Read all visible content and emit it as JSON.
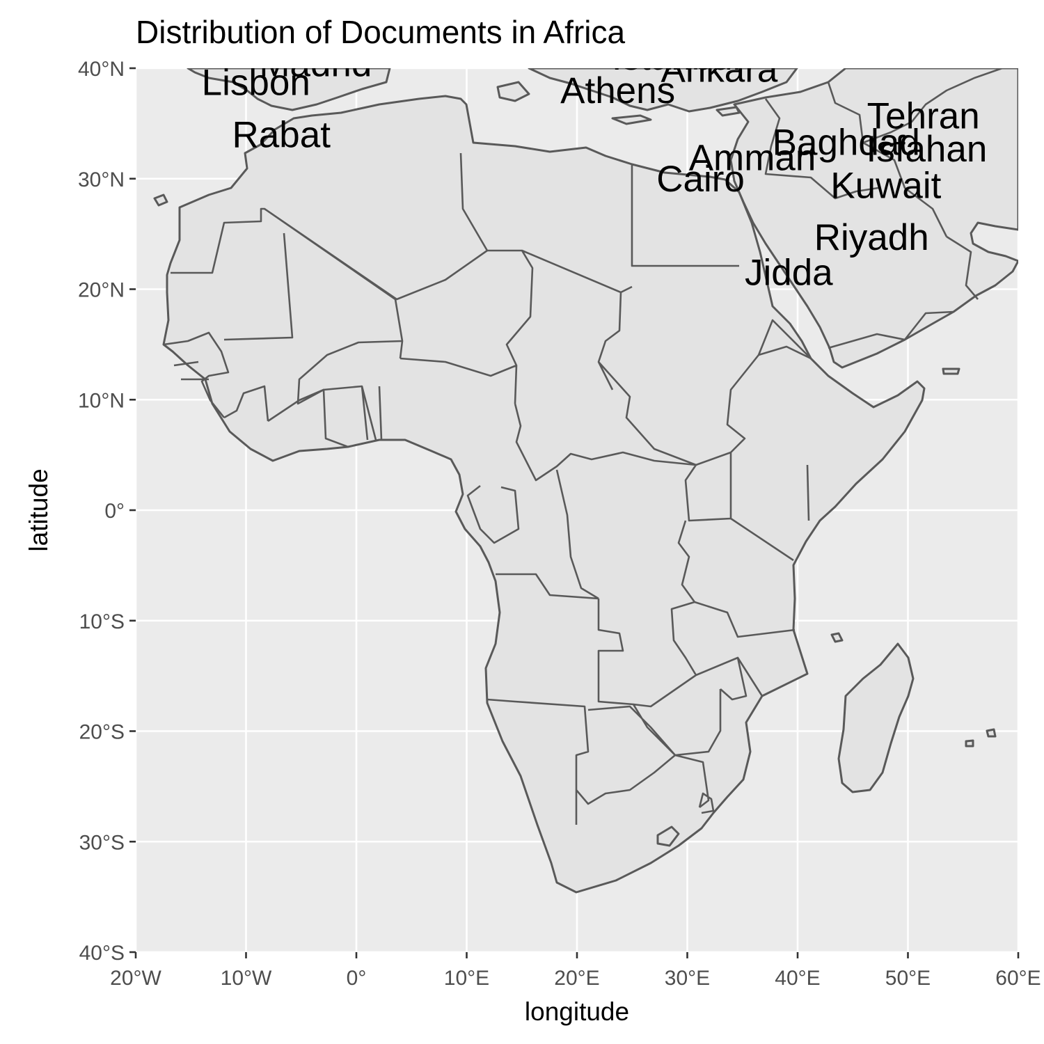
{
  "title": "Distribution of Documents in Africa",
  "x_axis": {
    "label": "longitude",
    "range": [
      -20,
      60
    ],
    "ticks": [
      {
        "value": -20,
        "label": "20°W"
      },
      {
        "value": -10,
        "label": "10°W"
      },
      {
        "value": 0,
        "label": "0°"
      },
      {
        "value": 10,
        "label": "10°E"
      },
      {
        "value": 20,
        "label": "20°E"
      },
      {
        "value": 30,
        "label": "30°E"
      },
      {
        "value": 40,
        "label": "40°E"
      },
      {
        "value": 50,
        "label": "50°E"
      },
      {
        "value": 60,
        "label": "60°E"
      }
    ]
  },
  "y_axis": {
    "label": "latitude",
    "range": [
      -40,
      40
    ],
    "ticks": [
      {
        "value": 40,
        "label": "40°N"
      },
      {
        "value": 30,
        "label": "30°N"
      },
      {
        "value": 20,
        "label": "20°N"
      },
      {
        "value": 10,
        "label": "10°N"
      },
      {
        "value": 0,
        "label": "0°"
      },
      {
        "value": -10,
        "label": "10°S"
      },
      {
        "value": -20,
        "label": "20°S"
      },
      {
        "value": -30,
        "label": "30°S"
      },
      {
        "value": -40,
        "label": "40°S"
      }
    ]
  },
  "cities": [
    {
      "name": "Madrid",
      "lon": -3.7,
      "lat": 40.4
    },
    {
      "name": "Lisbon",
      "lon": -9.1,
      "lat": 38.7
    },
    {
      "name": "Rabat",
      "lon": -6.8,
      "lat": 34.0
    },
    {
      "name": "Istanbul",
      "lon": 29.0,
      "lat": 41.0
    },
    {
      "name": "Ankara",
      "lon": 32.9,
      "lat": 39.9
    },
    {
      "name": "Athens",
      "lon": 23.7,
      "lat": 38.0
    },
    {
      "name": "Tehran",
      "lon": 51.4,
      "lat": 35.7
    },
    {
      "name": "Baghdad",
      "lon": 44.4,
      "lat": 33.3
    },
    {
      "name": "Isfahan",
      "lon": 51.7,
      "lat": 32.7
    },
    {
      "name": "Amman",
      "lon": 35.9,
      "lat": 31.9
    },
    {
      "name": "Cairo",
      "lon": 31.2,
      "lat": 30.0
    },
    {
      "name": "Kuwait",
      "lon": 48.0,
      "lat": 29.4
    },
    {
      "name": "Riyadh",
      "lon": 46.7,
      "lat": 24.7
    },
    {
      "name": "Jidda",
      "lon": 39.2,
      "lat": 21.5
    }
  ],
  "colors": {
    "panel": "#ebebeb",
    "land": "#e3e3e3",
    "border": "#595959",
    "grid": "#ffffff"
  }
}
